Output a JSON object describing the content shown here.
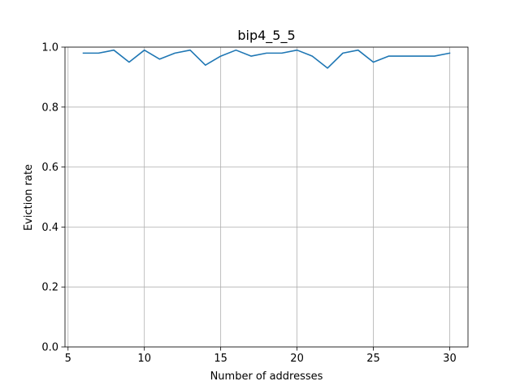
{
  "chart_data": {
    "type": "line",
    "title": "bip4_5_5",
    "xlabel": "Number of addresses",
    "ylabel": "Eviction rate",
    "xlim": [
      4.8,
      31.2
    ],
    "ylim": [
      0.0,
      1.0
    ],
    "xticks": [
      5,
      10,
      15,
      20,
      25,
      30
    ],
    "xtick_labels": [
      "5",
      "10",
      "15",
      "20",
      "25",
      "30"
    ],
    "yticks": [
      0.0,
      0.2,
      0.4,
      0.6,
      0.8,
      1.0
    ],
    "ytick_labels": [
      "0.0",
      "0.2",
      "0.4",
      "0.6",
      "0.8",
      "1.0"
    ],
    "grid": true,
    "line_color": "#1f77b4",
    "grid_color": "#b0b0b0",
    "series": [
      {
        "x": [
          6,
          7,
          8,
          9,
          10,
          11,
          12,
          13,
          14,
          15,
          16,
          17,
          18,
          19,
          20,
          21,
          22,
          23,
          24,
          25,
          26,
          27,
          28,
          29,
          30
        ],
        "values": [
          0.98,
          0.98,
          0.99,
          0.95,
          0.99,
          0.96,
          0.98,
          0.99,
          0.94,
          0.97,
          0.99,
          0.97,
          0.98,
          0.98,
          0.99,
          0.97,
          0.93,
          0.98,
          0.99,
          0.95,
          0.97,
          0.97,
          0.97,
          0.97,
          0.98
        ]
      }
    ]
  }
}
